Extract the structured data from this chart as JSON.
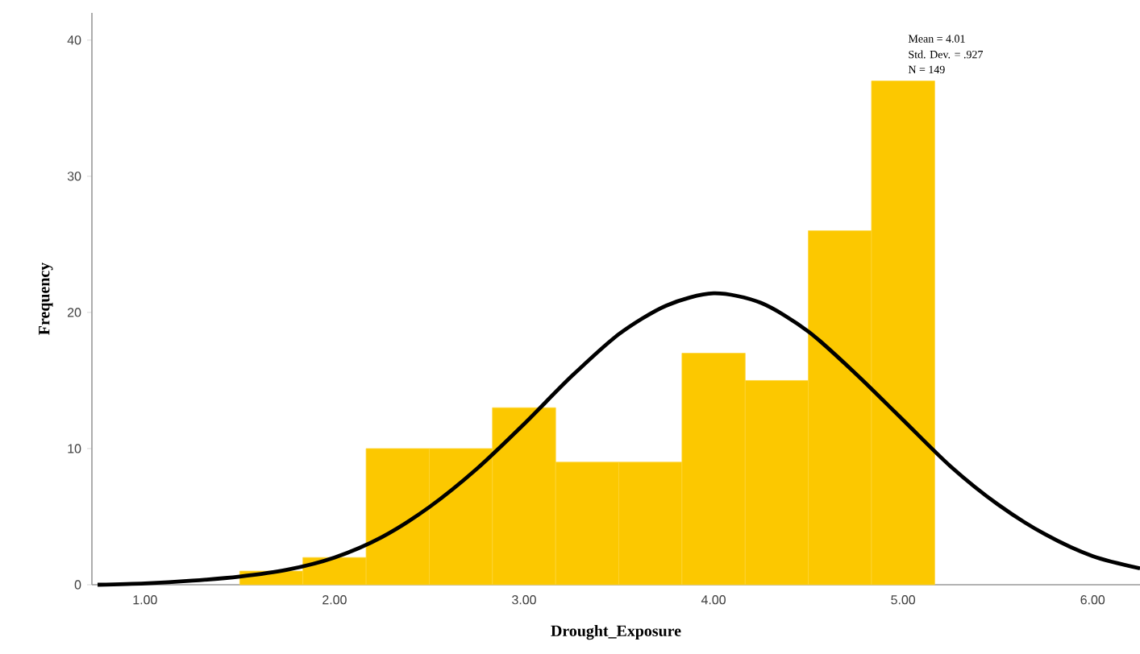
{
  "chart_data": {
    "type": "histogram",
    "xlabel": "Drought_Exposure",
    "ylabel": "Frequency",
    "xlim": [
      0.72,
      6.25
    ],
    "ylim": [
      0,
      42
    ],
    "xticks": [
      {
        "value": 1,
        "label": "1.00"
      },
      {
        "value": 2,
        "label": "2.00"
      },
      {
        "value": 3,
        "label": "3.00"
      },
      {
        "value": 4,
        "label": "4.00"
      },
      {
        "value": 5,
        "label": "5.00"
      },
      {
        "value": 6,
        "label": "6.00"
      }
    ],
    "yticks": [
      0,
      10,
      20,
      30,
      40
    ],
    "grid": false,
    "annotations": [
      "Mean = 4.01",
      "Std. Dev. = .927",
      "N = 149"
    ],
    "series": [
      {
        "color": "#fcc800",
        "bins": [
          1.5,
          1.8333,
          2.1667,
          2.5,
          2.8333,
          3.1667,
          3.5,
          3.8333,
          4.1667,
          4.5,
          4.8333,
          5.1667
        ],
        "values": [
          1,
          2,
          10,
          10,
          13,
          9,
          9,
          17,
          15,
          26,
          37
        ]
      },
      {
        "type": "line",
        "color": "#000000",
        "marker": "none",
        "x": [
          0.75,
          1.0,
          1.25,
          1.5,
          1.75,
          2.0,
          2.25,
          2.5,
          2.75,
          3.0,
          3.25,
          3.5,
          3.75,
          4.0,
          4.25,
          4.5,
          4.75,
          5.0,
          5.25,
          5.5,
          5.75,
          6.0,
          6.25
        ],
        "values": [
          0.0,
          0.1,
          0.3,
          0.6,
          1.1,
          2.0,
          3.5,
          5.7,
          8.5,
          11.8,
          15.3,
          18.4,
          20.5,
          21.4,
          20.7,
          18.6,
          15.5,
          12.1,
          8.7,
          5.9,
          3.7,
          2.1,
          1.2
        ]
      }
    ]
  }
}
